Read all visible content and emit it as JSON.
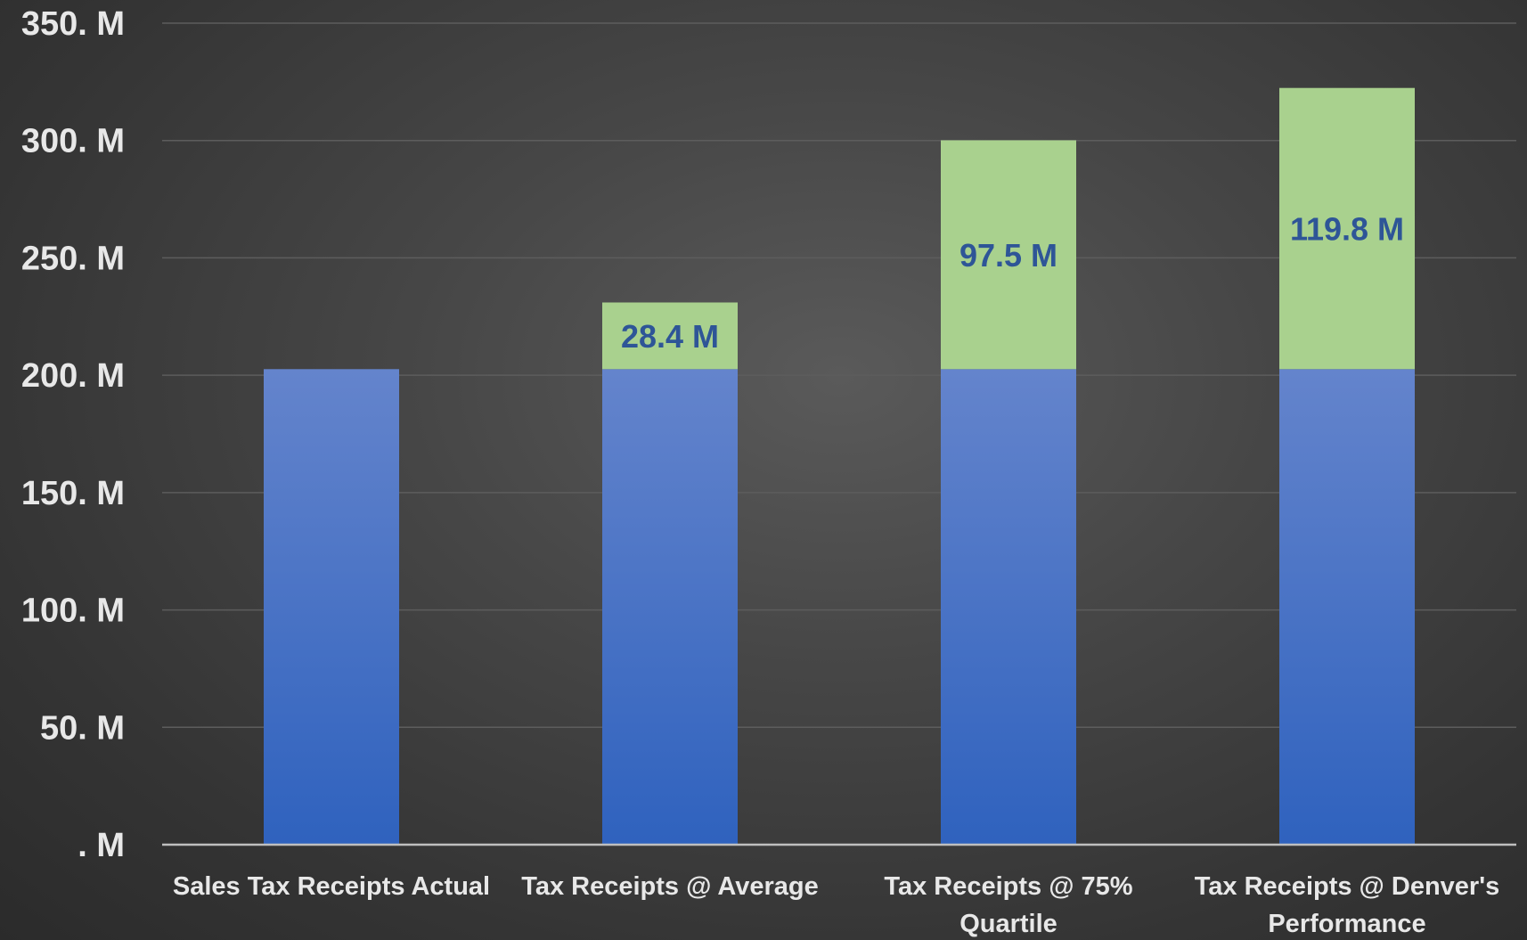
{
  "chart_data": {
    "type": "bar",
    "stacked": true,
    "title": "",
    "xlabel": "",
    "ylabel": "",
    "ylim": [
      0,
      350
    ],
    "y_unit": "M",
    "y_tick_labels": [
      ". M",
      "50. M",
      "100. M",
      "150. M",
      "200. M",
      "250. M",
      "300. M",
      "350. M"
    ],
    "y_tick_values": [
      0,
      50,
      100,
      150,
      200,
      250,
      300,
      350
    ],
    "grid": true,
    "legend": "none",
    "categories": [
      [
        "Sales Tax Receipts Actual"
      ],
      [
        "Tax Receipts @ Average"
      ],
      [
        "Tax Receipts @ 75%",
        "Quartile"
      ],
      [
        "Tax Receipts @ Denver's",
        "Performance"
      ]
    ],
    "series": [
      {
        "values": [
          202.6,
          202.6,
          202.6,
          202.6
        ],
        "color_top": "#6484cc",
        "color_bottom": "#2f62be",
        "labels": [
          "",
          "",
          "",
          ""
        ]
      },
      {
        "values": [
          0,
          28.4,
          97.5,
          119.8
        ],
        "color": "#a9d18e",
        "labels": [
          "",
          "28.4 M",
          "97.5 M",
          "119.8 M"
        ]
      }
    ]
  }
}
